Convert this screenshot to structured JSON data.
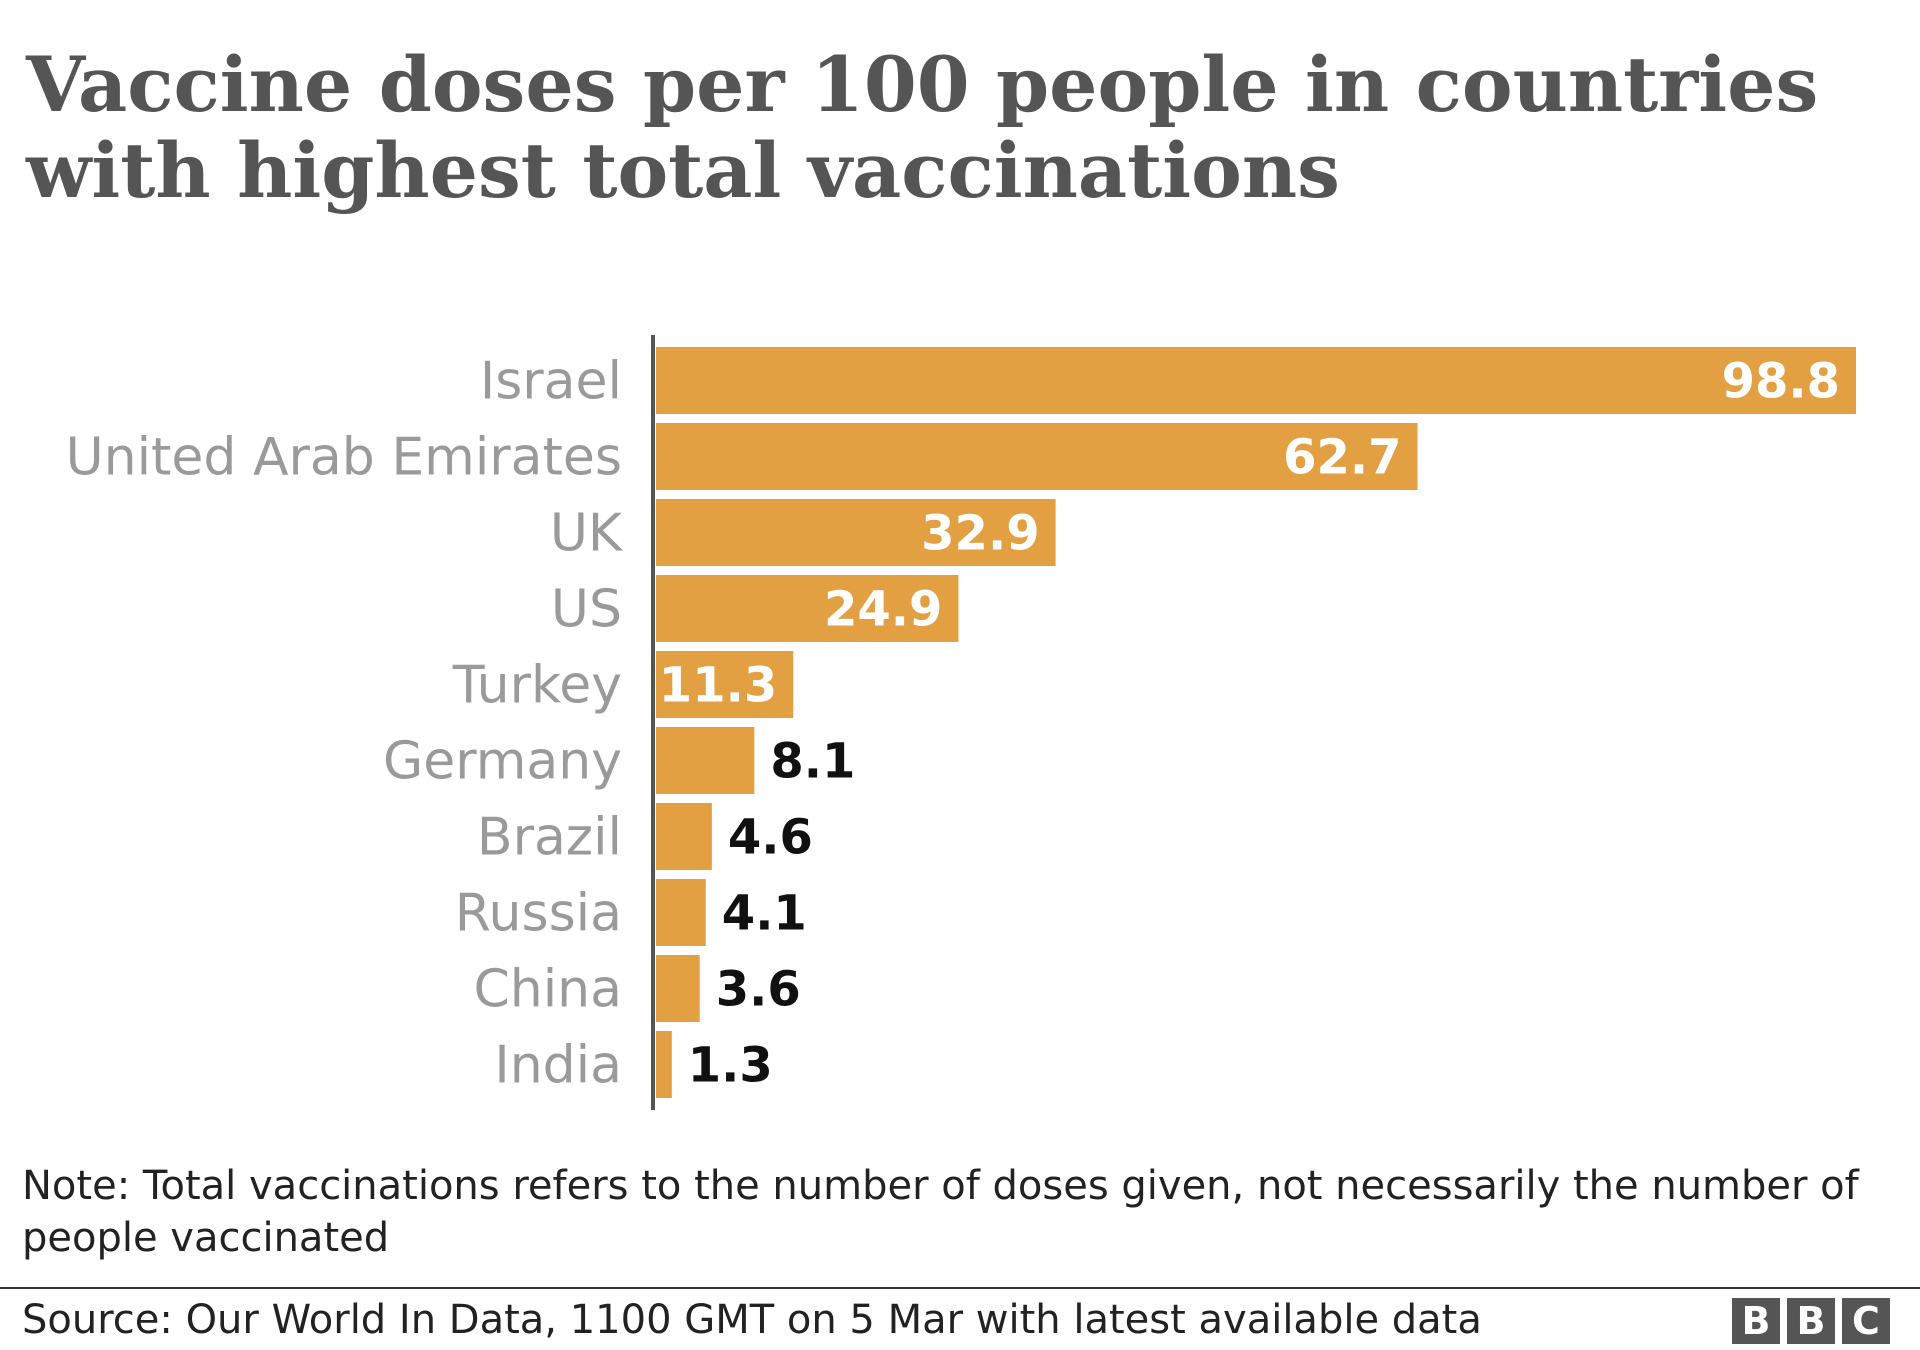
{
  "chart_data": {
    "type": "bar",
    "orientation": "horizontal",
    "title": "Vaccine doses per 100 people in countries with highest total vaccinations",
    "categories": [
      "Israel",
      "United Arab Emirates",
      "UK",
      "US",
      "Turkey",
      "Germany",
      "Brazil",
      "Russia",
      "China",
      "India"
    ],
    "values": [
      98.8,
      62.7,
      32.9,
      24.9,
      11.3,
      8.1,
      4.6,
      4.1,
      3.6,
      1.3
    ],
    "value_labels": [
      "98.8",
      "62.7",
      "32.9",
      "24.9",
      "11.3",
      "8.1",
      "4.6",
      "4.1",
      "3.6",
      "1.3"
    ],
    "xlim": [
      0,
      98.8
    ],
    "grid": false,
    "legend": "none",
    "colors": {
      "bar": "#e2a043",
      "label_inside": "#ffffff",
      "label_outside": "#111111",
      "category": "#9a9a9a",
      "axis": "#555555"
    }
  },
  "note": "Note: Total vaccinations refers to the number of doses given, not necessarily the number of people vaccinated",
  "source": "Source: Our World In Data, 1100 GMT on 5 Mar with latest available data",
  "logo": {
    "letters": [
      "B",
      "B",
      "C"
    ]
  }
}
